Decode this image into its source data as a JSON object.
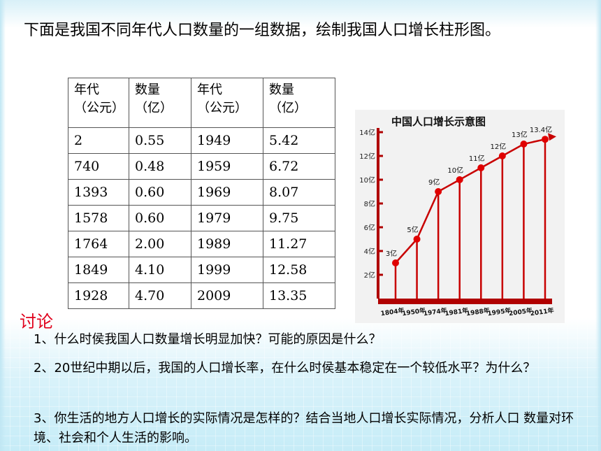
{
  "intro": "下面是我国不同年代人口数量的一组数据，绘制我国人口增长柱形图。",
  "table": {
    "headers": [
      {
        "line1": "年代",
        "line2": "（公元）"
      },
      {
        "line1": "数量",
        "line2": "（亿）"
      },
      {
        "line1": "年代",
        "line2": "（公元）"
      },
      {
        "line1": "数量",
        "line2": "（亿）"
      }
    ],
    "rows": [
      [
        "2",
        "0.55",
        "1949",
        "5.42"
      ],
      [
        "740",
        "0.48",
        "1959",
        "6.72"
      ],
      [
        "1393",
        "0.60",
        "1969",
        "8.07"
      ],
      [
        "1578",
        "0.60",
        "1979",
        "9.75"
      ],
      [
        "1764",
        "2.00",
        "1989",
        "11.27"
      ],
      [
        "1849",
        "4.10",
        "1999",
        "12.58"
      ],
      [
        "1928",
        "4.70",
        "2009",
        "13.35"
      ]
    ]
  },
  "chart_data": {
    "type": "line",
    "title": "中国人口增长示意图",
    "y_ticks": [
      "2亿",
      "4亿",
      "6亿",
      "8亿",
      "10亿",
      "12亿",
      "14亿"
    ],
    "y_tick_values": [
      2,
      4,
      6,
      8,
      10,
      12,
      14
    ],
    "ylim": [
      0,
      14
    ],
    "x": [
      "1804年",
      "1950年",
      "1974年",
      "1981年",
      "1988年",
      "1995年",
      "2005年",
      "2011年"
    ],
    "values": [
      3,
      5,
      9,
      10,
      11,
      12,
      13,
      13.4
    ],
    "point_labels": [
      "3亿",
      "5亿",
      "9亿",
      "10亿",
      "11亿",
      "12亿",
      "13亿",
      "13.4亿"
    ],
    "colors": {
      "line": "#c80000",
      "point": "#e00000",
      "axis": "#b00000",
      "stem": "#c80000"
    }
  },
  "discussion": {
    "title": "讨论",
    "q1": "1、什么时侯我国人口数量增长明显加快？可能的原因是什么？",
    "q2": "2、20世纪中期以后，我国的人口增长率，在什么时侯基本稳定在一个较低水平？为什么？",
    "q3": "3、你生活的地方人口增长的实际情况是怎样的？结合当地人口增长实际情况，分析人口 数量对环境、社会和个人生活的影响。"
  }
}
